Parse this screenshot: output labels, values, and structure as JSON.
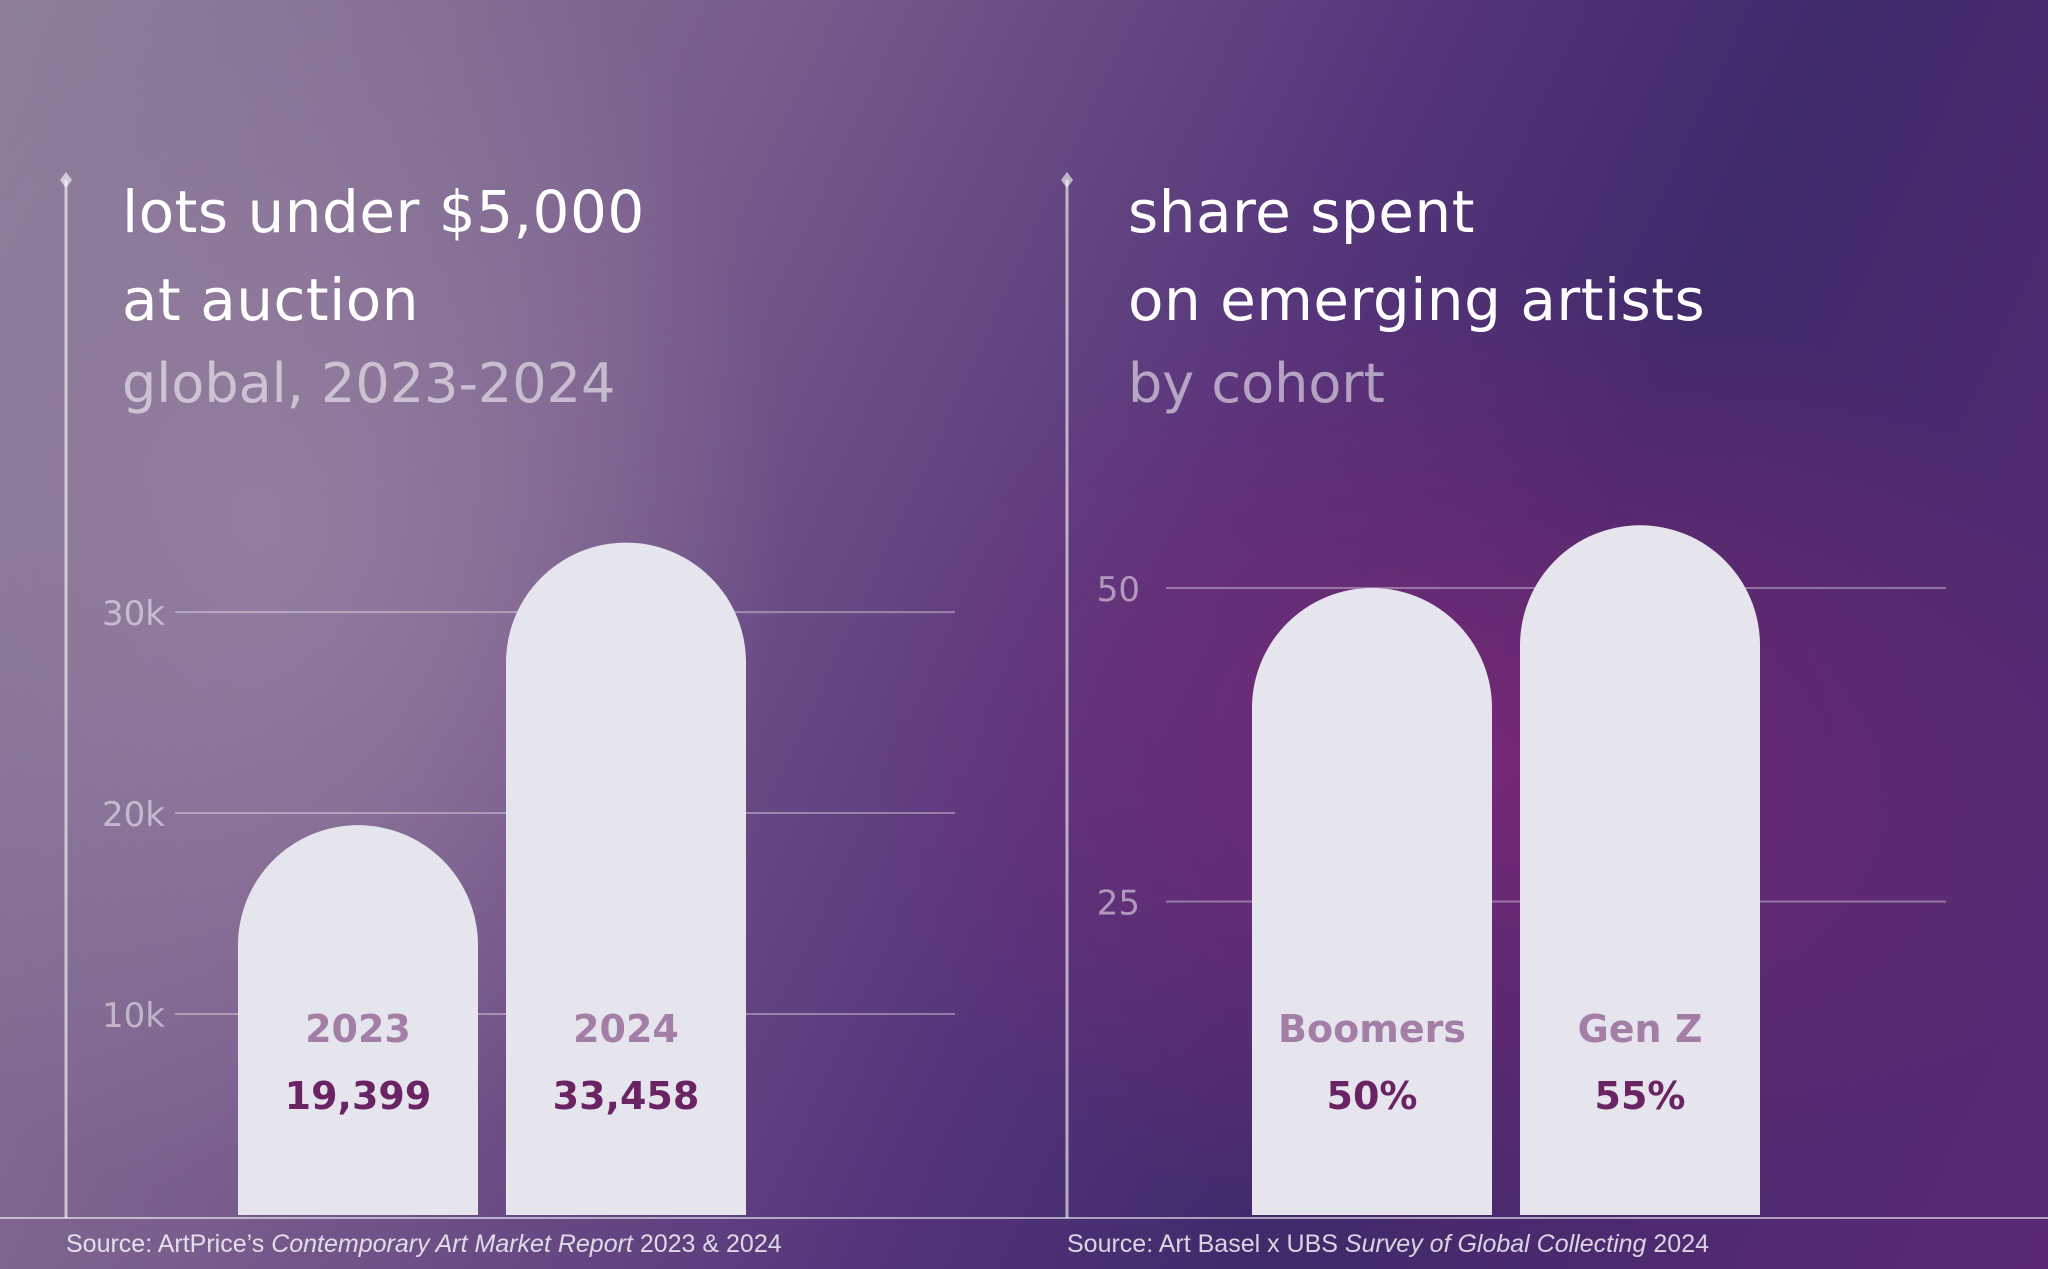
{
  "charts": [
    {
      "title_line1": "lots under $5,000",
      "title_line2": "at auction",
      "subtitle": "global, 2023-2024",
      "source_prefix": "Source: ArtPrice’s ",
      "source_italic": "Contemporary Art Market Report",
      "source_suffix": " 2023 & 2024"
    },
    {
      "title_line1": "share spent",
      "title_line2": "on emerging artists",
      "subtitle": "by cohort",
      "source_prefix": "Source: Art Basel x UBS ",
      "source_italic": "Survey of Global Collecting",
      "source_suffix": " 2024"
    }
  ],
  "colors": {
    "bar_fill": "#e6e5ee",
    "category_label": "#a37ea6",
    "value_label": "#6b2463",
    "gridline": "rgba(255,255,255,0.35)",
    "tick_label": "rgba(255,255,255,0.5)",
    "axis_line": "rgba(255,255,255,0.6)"
  },
  "chart_data": [
    {
      "type": "bar",
      "categories": [
        "2023",
        "2024"
      ],
      "values": [
        19399,
        33458
      ],
      "value_labels": [
        "19,399",
        "33,458"
      ],
      "yticks": [
        10000,
        20000,
        30000
      ],
      "ytick_labels": [
        "10k",
        "20k",
        "30k"
      ],
      "title": "lots under $5,000 at auction",
      "subtitle": "global, 2023-2024",
      "grid": true,
      "bar_shape": "rounded-top"
    },
    {
      "type": "bar",
      "categories": [
        "Boomers",
        "Gen Z"
      ],
      "values": [
        50,
        55
      ],
      "value_labels": [
        "50%",
        "55%"
      ],
      "yticks": [
        25,
        50
      ],
      "ytick_labels": [
        "25",
        "50"
      ],
      "title": "share spent on emerging artists",
      "subtitle": "by cohort",
      "grid": true,
      "bar_shape": "rounded-top"
    }
  ]
}
